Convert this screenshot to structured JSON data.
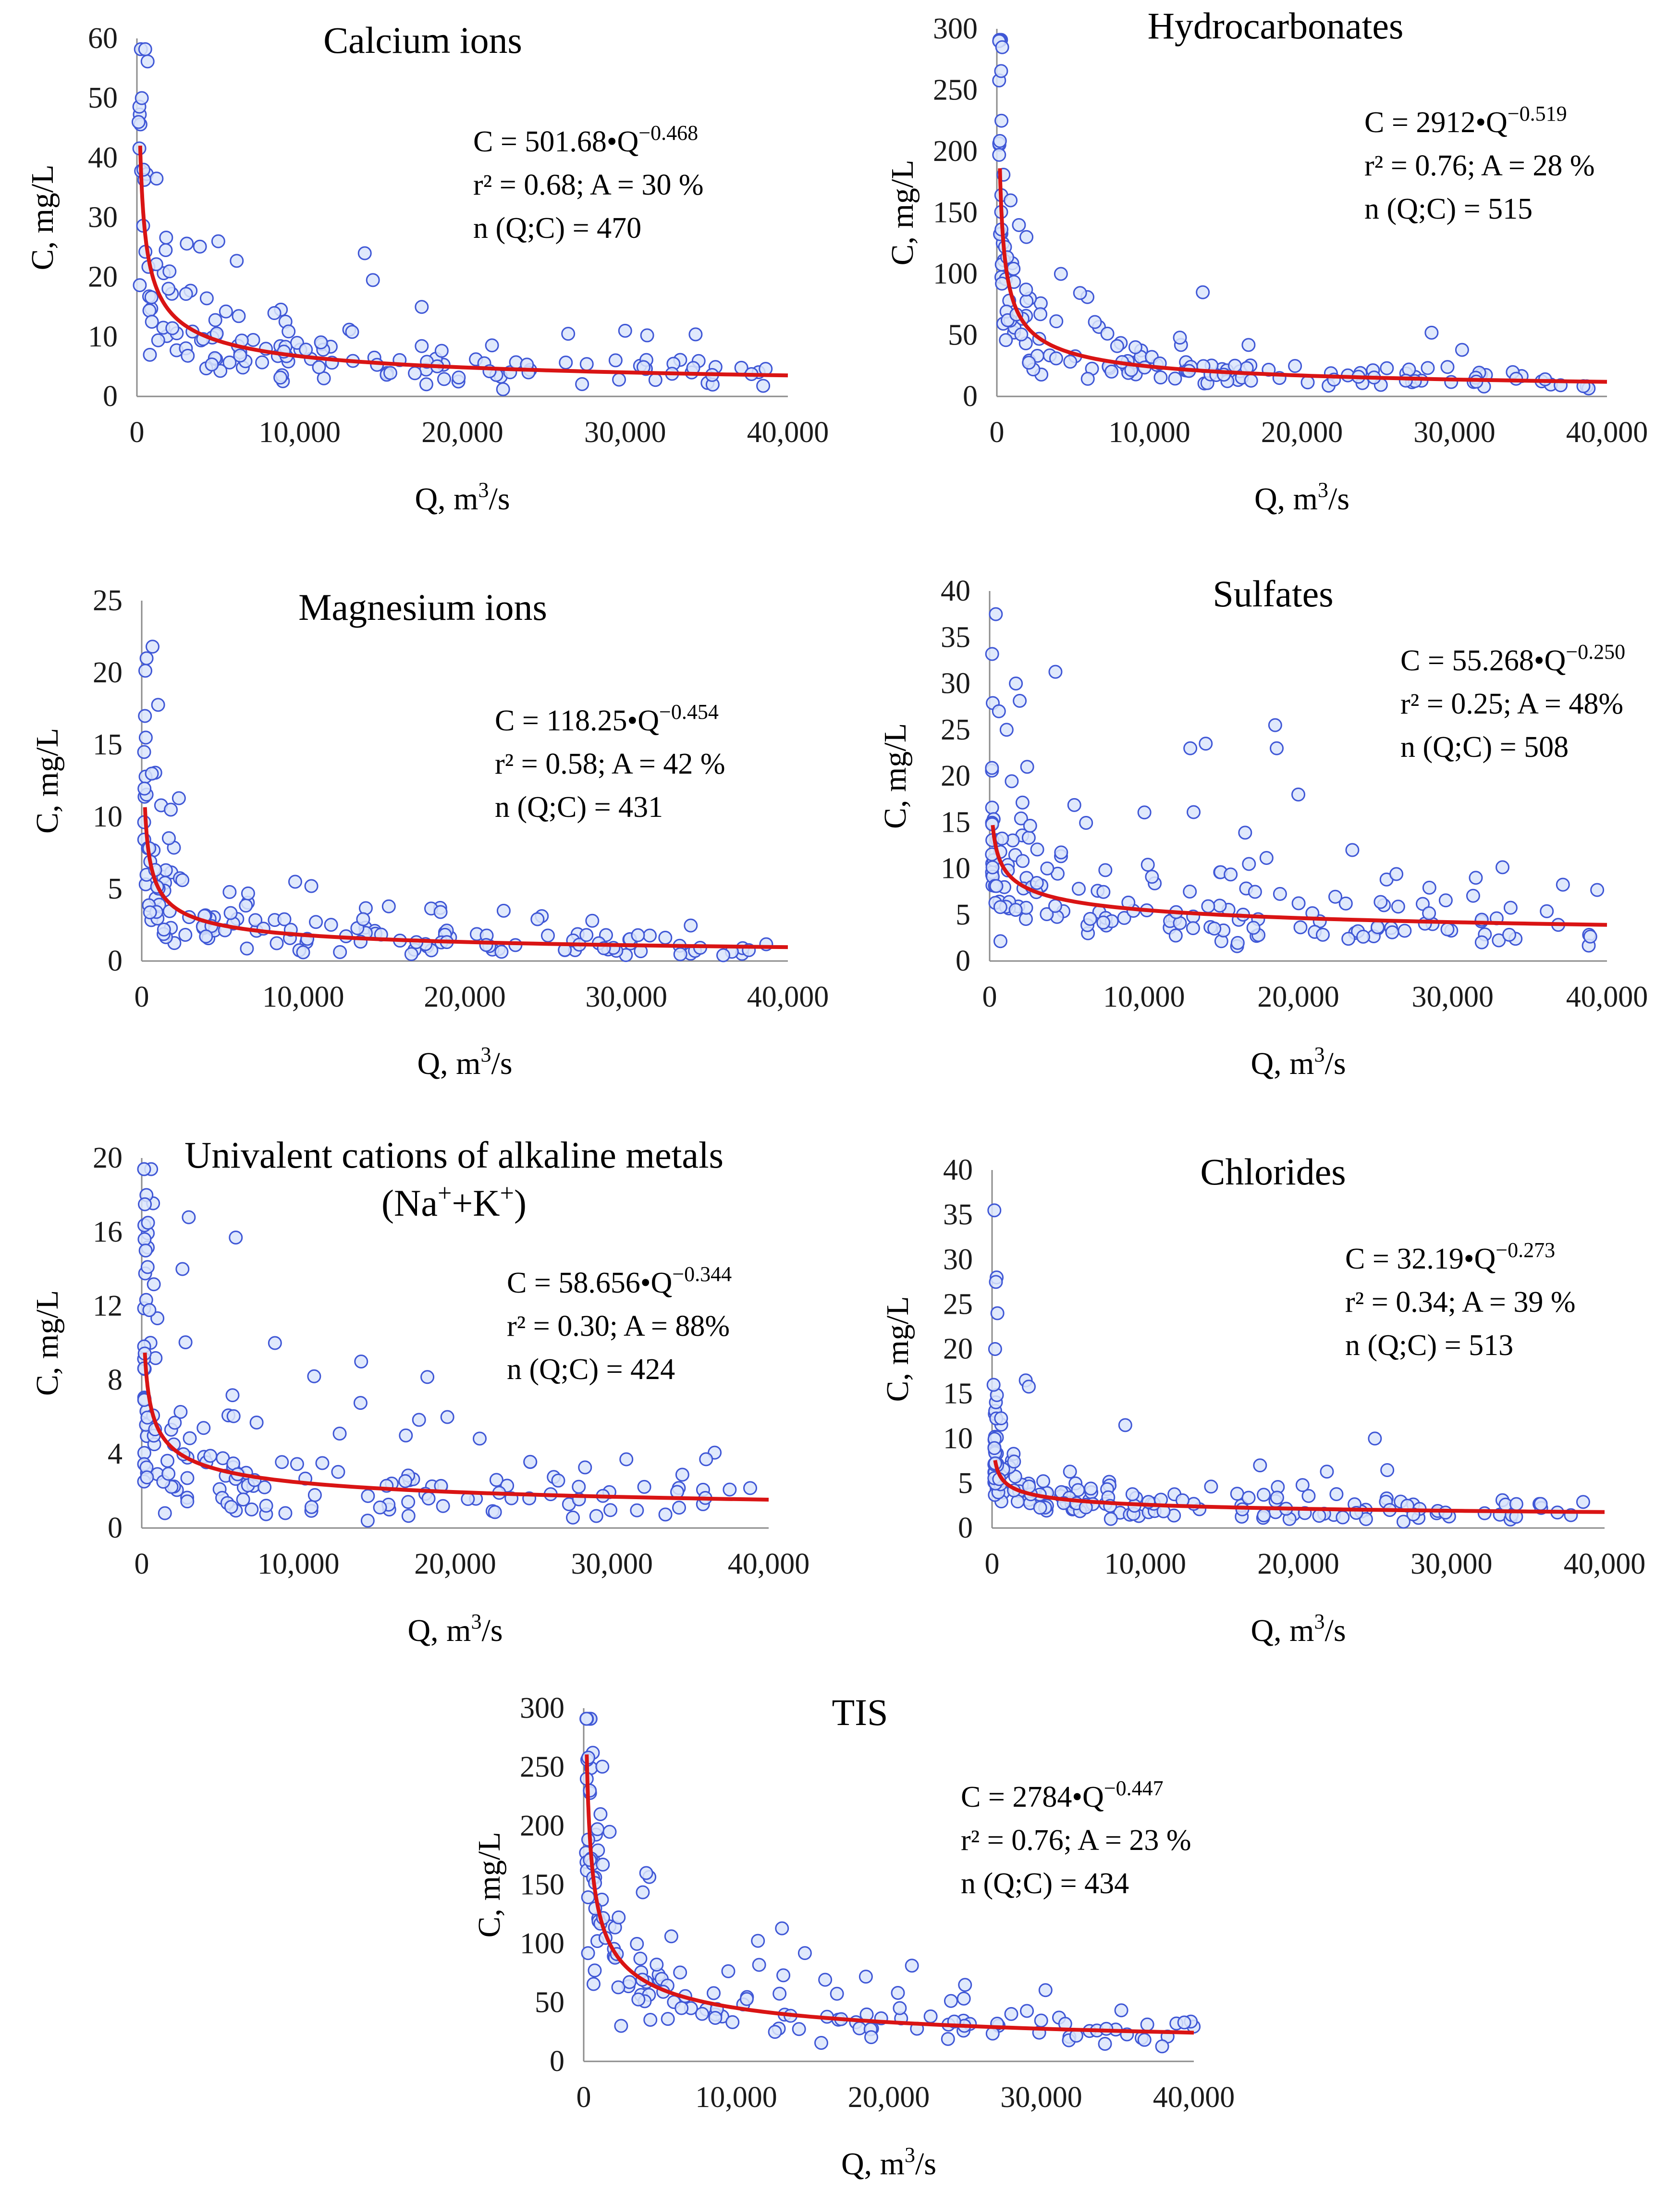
{
  "figure": {
    "colors": {
      "points_stroke": "#3f57d6",
      "points_fill": "#dbe5fb",
      "fit_line": "#d91414",
      "axis": "#8c8c8c",
      "text": "#000000"
    }
  },
  "chart_data": [
    {
      "id": "calcium",
      "type": "scatter",
      "title": "Calcium ions",
      "xlabel": "Q, m",
      "xlabel_sup": "3",
      "xlabel_suffix": "/s",
      "ylabel": "C, mg/L",
      "xlim": [
        0,
        40000
      ],
      "ylim": [
        0,
        60
      ],
      "xticks": [
        0,
        10000,
        20000,
        30000,
        40000
      ],
      "xtick_labels": [
        "0",
        "10,000",
        "20,000",
        "30,000",
        "40,000"
      ],
      "yticks": [
        0,
        10,
        20,
        30,
        40,
        50,
        60
      ],
      "ytick_labels": [
        "0",
        "10",
        "20",
        "30",
        "40",
        "50",
        "60"
      ],
      "fit": {
        "a": 501.68,
        "b": -0.468,
        "x_start": 200,
        "x_end": 40000
      },
      "equation": {
        "prefix": "C = 501.68•Q",
        "exponent": "−0.468"
      },
      "stats": "r² = 0.68; A = 30 %",
      "n_label": "n (Q;C) = 470",
      "points_gen": {
        "n": 150,
        "seed": 11,
        "xmax": 39000,
        "noise": 0.42,
        "min": 1
      },
      "outliers": [
        [
          100,
          46
        ],
        [
          300,
          50
        ],
        [
          400,
          38
        ],
        [
          5000,
          26
        ],
        [
          14000,
          24
        ],
        [
          14500,
          19.5
        ],
        [
          17500,
          15
        ],
        [
          26500,
          10.5
        ],
        [
          30000,
          11
        ],
        [
          22500,
          1.2
        ]
      ]
    },
    {
      "id": "hydrocarbonates",
      "type": "scatter",
      "title": "Hydrocarbonates",
      "xlabel": "Q, m",
      "xlabel_sup": "3",
      "xlabel_suffix": "/s",
      "ylabel": "C, mg/L",
      "xlim": [
        0,
        40000
      ],
      "ylim": [
        0,
        300
      ],
      "xticks": [
        0,
        10000,
        20000,
        30000,
        40000
      ],
      "xtick_labels": [
        "0",
        "10,000",
        "20,000",
        "30,000",
        "40,000"
      ],
      "yticks": [
        0,
        50,
        100,
        150,
        200,
        250,
        300
      ],
      "ytick_labels": [
        "0",
        "50",
        "100",
        "150",
        "200",
        "250",
        "300"
      ],
      "fit": {
        "a": 2912,
        "b": -0.519,
        "x_start": 200,
        "x_end": 40000
      },
      "equation": {
        "prefix": "C = 2912•Q",
        "exponent": "−0.519"
      },
      "stats": "r² = 0.76; A = 28 %",
      "n_label": "n (Q;C) = 515",
      "points_gen": {
        "n": 150,
        "seed": 23,
        "xmax": 39000,
        "noise": 0.38,
        "min": 5
      },
      "outliers": [
        [
          150,
          290
        ],
        [
          350,
          285
        ],
        [
          300,
          225
        ],
        [
          900,
          160
        ],
        [
          4200,
          100
        ],
        [
          13500,
          85
        ],
        [
          28500,
          52
        ],
        [
          30500,
          38
        ],
        [
          12000,
          48
        ],
        [
          16500,
          42
        ]
      ]
    },
    {
      "id": "magnesium",
      "type": "scatter",
      "title": "Magnesium ions",
      "xlabel": "Q, m",
      "xlabel_sup": "3",
      "xlabel_suffix": "/s",
      "ylabel": "C, mg/L",
      "xlim": [
        0,
        40000
      ],
      "ylim": [
        0,
        25
      ],
      "xticks": [
        0,
        10000,
        20000,
        30000,
        40000
      ],
      "xtick_labels": [
        "0",
        "10,000",
        "20,000",
        "30,000",
        "40,000"
      ],
      "yticks": [
        0,
        5,
        10,
        15,
        20,
        25
      ],
      "ytick_labels": [
        "0",
        "5",
        "10",
        "15",
        "20",
        "25"
      ],
      "fit": {
        "a": 118.25,
        "b": -0.454,
        "x_start": 200,
        "x_end": 40000
      },
      "equation": {
        "prefix": "C = 118.25•Q",
        "exponent": "−0.454"
      },
      "stats": "r² = 0.58; A = 42 %",
      "n_label": "n (Q;C) = 431",
      "points_gen": {
        "n": 150,
        "seed": 37,
        "xmax": 39500,
        "noise": 0.5,
        "min": 0.3
      },
      "outliers": [
        [
          300,
          21
        ],
        [
          200,
          17
        ],
        [
          250,
          15.5
        ],
        [
          150,
          14.5
        ],
        [
          1200,
          10.8
        ],
        [
          1800,
          10.5
        ],
        [
          10500,
          5.2
        ],
        [
          9500,
          5.5
        ],
        [
          18500,
          3.4
        ],
        [
          24500,
          2.9
        ],
        [
          36000,
          0.4
        ]
      ]
    },
    {
      "id": "sulfates",
      "type": "scatter",
      "title": "Sulfates",
      "xlabel": "Q, m",
      "xlabel_sup": "3",
      "xlabel_suffix": "/s",
      "ylabel": "C, mg/L",
      "xlim": [
        0,
        40000
      ],
      "ylim": [
        0,
        40
      ],
      "xticks": [
        0,
        10000,
        20000,
        30000,
        40000
      ],
      "xtick_labels": [
        "0",
        "10,000",
        "20,000",
        "30,000",
        "40,000"
      ],
      "yticks": [
        0,
        5,
        10,
        15,
        20,
        25,
        30,
        35,
        40
      ],
      "ytick_labels": [
        "0",
        "5",
        "10",
        "15",
        "20",
        "25",
        "30",
        "35",
        "40"
      ],
      "fit": {
        "a": 55.268,
        "b": -0.25,
        "x_start": 200,
        "x_end": 40000
      },
      "equation": {
        "prefix": "C = 55.268•Q",
        "exponent": "−0.250"
      },
      "stats": "r² = 0.25; A = 48%",
      "n_label": "n (Q;C) = 508",
      "points_gen": {
        "n": 170,
        "seed": 51,
        "xmax": 39500,
        "noise": 0.55,
        "min": 0.5
      },
      "outliers": [
        [
          400,
          37.5
        ],
        [
          1700,
          30
        ],
        [
          600,
          27
        ],
        [
          18500,
          25.5
        ],
        [
          18600,
          23
        ],
        [
          13000,
          23
        ],
        [
          14000,
          23.5
        ],
        [
          20000,
          18
        ],
        [
          1100,
          25
        ],
        [
          23500,
          12
        ],
        [
          31500,
          9
        ]
      ]
    },
    {
      "id": "alkaline",
      "type": "scatter",
      "title": "Univalent cations of alkaline metals",
      "subtitle_prefix": "(Na",
      "subtitle_sup1": "+",
      "subtitle_mid": "+K",
      "subtitle_sup2": "+",
      "subtitle_suffix": ")",
      "xlabel": "Q, m",
      "xlabel_sup": "3",
      "xlabel_suffix": "/s",
      "ylabel": "C, mg/L",
      "xlim": [
        0,
        40000
      ],
      "ylim": [
        0,
        20
      ],
      "xticks": [
        0,
        10000,
        20000,
        30000,
        40000
      ],
      "xtick_labels": [
        "0",
        "10,000",
        "20,000",
        "30,000",
        "40,000"
      ],
      "yticks": [
        0,
        4,
        8,
        12,
        16,
        20
      ],
      "ytick_labels": [
        "0",
        "4",
        "8",
        "12",
        "16",
        "20"
      ],
      "fit": {
        "a": 58.656,
        "b": -0.344,
        "x_start": 200,
        "x_end": 40000
      },
      "equation": {
        "prefix": "C = 58.656•Q",
        "exponent": "−0.344"
      },
      "stats": "r² = 0.30; A = 88%",
      "n_label": "n (Q;C) = 424",
      "points_gen": {
        "n": 160,
        "seed": 67,
        "xmax": 40000,
        "noise": 0.6,
        "min": 0.4
      },
      "outliers": [
        [
          300,
          18
        ],
        [
          200,
          17.5
        ],
        [
          400,
          16.5
        ],
        [
          250,
          15
        ],
        [
          3000,
          16.8
        ],
        [
          6000,
          15.7
        ],
        [
          2600,
          14
        ],
        [
          8500,
          10
        ],
        [
          11000,
          8.2
        ],
        [
          14000,
          9
        ],
        [
          19500,
          6
        ]
      ]
    },
    {
      "id": "chlorides",
      "type": "scatter",
      "title": "Chlorides",
      "xlabel": "Q, m",
      "xlabel_sup": "3",
      "xlabel_suffix": "/s",
      "ylabel": "C, mg/L",
      "xlim": [
        0,
        40000
      ],
      "ylim": [
        0,
        40
      ],
      "xticks": [
        0,
        10000,
        20000,
        30000,
        40000
      ],
      "xtick_labels": [
        "0",
        "10,000",
        "20,000",
        "30,000",
        "40,000"
      ],
      "yticks": [
        0,
        5,
        10,
        15,
        20,
        25,
        30,
        35,
        40
      ],
      "ytick_labels": [
        "0",
        "5",
        "10",
        "15",
        "20",
        "25",
        "30",
        "35",
        "40"
      ],
      "fit": {
        "a": 32.19,
        "b": -0.273,
        "x_start": 200,
        "x_end": 40000
      },
      "equation": {
        "prefix": "C = 32.19•Q",
        "exponent": "−0.273"
      },
      "stats": "r² = 0.34; A = 39 %",
      "n_label": "n (Q;C) = 513",
      "points_gen": {
        "n": 170,
        "seed": 79,
        "xmax": 39500,
        "noise": 0.45,
        "min": 0.5
      },
      "outliers": [
        [
          150,
          35.5
        ],
        [
          300,
          28
        ],
        [
          250,
          27.5
        ],
        [
          350,
          24
        ],
        [
          200,
          20
        ],
        [
          100,
          16
        ],
        [
          2200,
          16.5
        ],
        [
          2400,
          15.8
        ],
        [
          8700,
          11.5
        ],
        [
          25000,
          10
        ],
        [
          17500,
          7
        ]
      ]
    },
    {
      "id": "tis",
      "type": "scatter",
      "title": "TIS",
      "xlabel": "Q, m",
      "xlabel_sup": "3",
      "xlabel_suffix": "/s",
      "ylabel": "C, mg/L",
      "xlim": [
        0,
        40000
      ],
      "ylim": [
        0,
        300
      ],
      "xticks": [
        0,
        10000,
        20000,
        30000,
        40000
      ],
      "xtick_labels": [
        "0",
        "10,000",
        "20,000",
        "30,000",
        "40,000"
      ],
      "yticks": [
        0,
        50,
        100,
        150,
        200,
        250,
        300
      ],
      "ytick_labels": [
        "0",
        "50",
        "100",
        "150",
        "200",
        "250",
        "300"
      ],
      "fit": {
        "a": 2784,
        "b": -0.447,
        "x_start": 200,
        "x_end": 40000
      },
      "equation": {
        "prefix": "C = 2784•Q",
        "exponent": "−0.447"
      },
      "stats": "r² = 0.76; A = 23 %",
      "n_label": "n (Q;C) = 434",
      "points_gen": {
        "n": 150,
        "seed": 97,
        "xmax": 40000,
        "noise": 0.35,
        "min": 10
      },
      "outliers": [
        [
          300,
          258
        ],
        [
          200,
          240
        ],
        [
          400,
          230
        ],
        [
          1100,
          210
        ],
        [
          1700,
          195
        ],
        [
          4100,
          160
        ],
        [
          13000,
          113
        ],
        [
          14500,
          92
        ],
        [
          25000,
          65
        ],
        [
          18500,
          72
        ],
        [
          11500,
          82
        ]
      ]
    }
  ]
}
